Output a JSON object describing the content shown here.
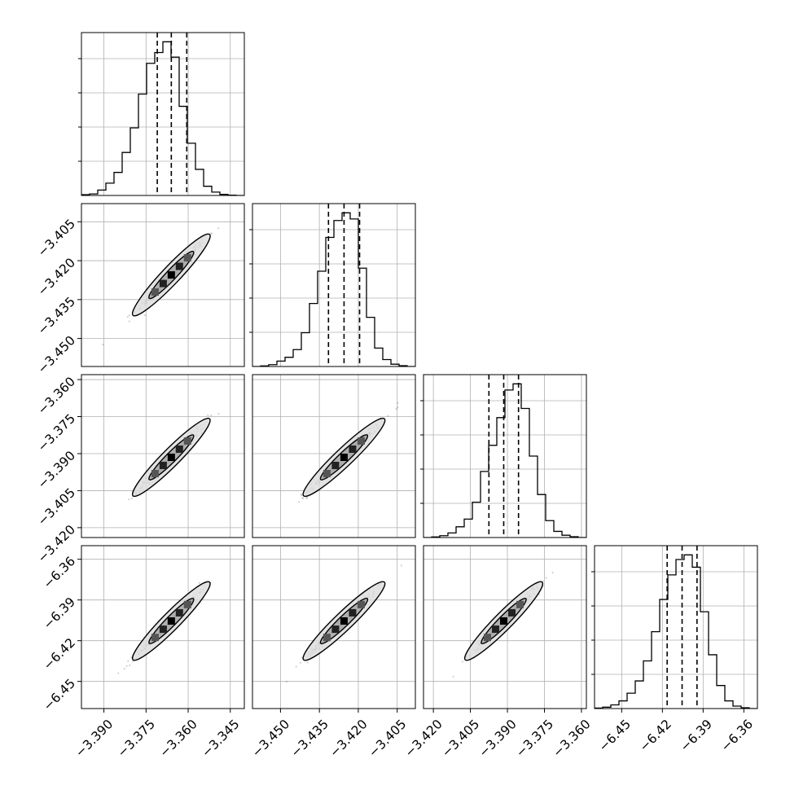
{
  "chart_data": {
    "type": "corner",
    "title": "",
    "grid": true,
    "colors": {
      "line": "#000000",
      "grid": "#b0b0b0",
      "density_dark": "#000000",
      "density_light": "#dcdcdc"
    },
    "params": [
      {
        "center": -3.366,
        "q_low": -3.371,
        "q_high": -3.3605,
        "hist_range": [
          -3.398,
          -3.34
        ],
        "hist_max": 1.06,
        "ticks": [
          -3.39,
          -3.375,
          -3.36,
          -3.345
        ],
        "tick_labels": [
          "−3.390",
          "−3.375",
          "−3.360",
          "−3.345"
        ]
      },
      {
        "center": -3.4255,
        "q_low": -3.4315,
        "q_high": -3.4195,
        "hist_range": [
          -3.4608,
          -3.398
        ],
        "hist_max": 1.06,
        "ticks": [
          -3.45,
          -3.435,
          -3.42,
          -3.405
        ],
        "tick_labels": [
          "−3.450",
          "−3.435",
          "−3.420",
          "−3.405"
        ]
      },
      {
        "center": -3.3915,
        "q_low": -3.3975,
        "q_high": -3.3855,
        "hist_range": [
          -3.424,
          -3.358
        ],
        "hist_max": 1.06,
        "ticks": [
          -3.42,
          -3.405,
          -3.39,
          -3.375,
          -3.36
        ],
        "tick_labels": [
          "−3.420",
          "−3.405",
          "−3.390",
          "−3.375",
          "−3.360"
        ]
      },
      {
        "center": -6.4055,
        "q_low": -6.4165,
        "q_high": -6.3945,
        "hist_range": [
          -6.47,
          -6.35
        ],
        "hist_max": 1.06,
        "ticks": [
          -6.45,
          -6.42,
          -6.39,
          -6.36
        ],
        "tick_labels": [
          "−6.45",
          "−6.42",
          "−6.39",
          "−6.36"
        ]
      }
    ],
    "hist_bins": 20,
    "hist_values": [
      [
        0.005,
        0.01,
        0.035,
        0.08,
        0.15,
        0.28,
        0.44,
        0.66,
        0.86,
        0.93,
        1.0,
        0.9,
        0.58,
        0.34,
        0.17,
        0.06,
        0.022,
        0.007,
        0.002,
        0.0
      ],
      [
        0.0,
        0.004,
        0.012,
        0.035,
        0.06,
        0.11,
        0.22,
        0.41,
        0.62,
        0.84,
        0.95,
        1.0,
        0.96,
        0.64,
        0.32,
        0.12,
        0.045,
        0.015,
        0.005,
        0.0
      ],
      [
        0.0,
        0.004,
        0.012,
        0.03,
        0.07,
        0.12,
        0.23,
        0.43,
        0.6,
        0.78,
        0.96,
        1.0,
        0.84,
        0.53,
        0.28,
        0.11,
        0.04,
        0.015,
        0.005,
        0.0
      ],
      [
        0.003,
        0.009,
        0.024,
        0.05,
        0.1,
        0.18,
        0.31,
        0.5,
        0.71,
        0.87,
        0.97,
        1.0,
        0.92,
        0.63,
        0.35,
        0.15,
        0.05,
        0.016,
        0.005,
        0.0
      ]
    ],
    "correlation": 0.985,
    "y_tick_rows": [
      1,
      2,
      3
    ],
    "x_tick_cols": [
      0,
      1,
      2,
      3
    ]
  }
}
